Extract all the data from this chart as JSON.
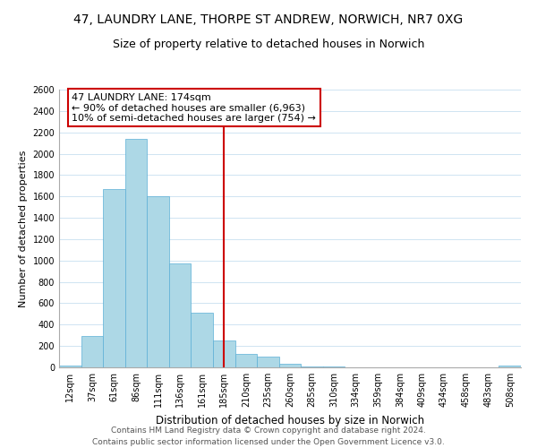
{
  "title": "47, LAUNDRY LANE, THORPE ST ANDREW, NORWICH, NR7 0XG",
  "subtitle": "Size of property relative to detached houses in Norwich",
  "xlabel": "Distribution of detached houses by size in Norwich",
  "ylabel": "Number of detached properties",
  "bar_labels": [
    "12sqm",
    "37sqm",
    "61sqm",
    "86sqm",
    "111sqm",
    "136sqm",
    "161sqm",
    "185sqm",
    "210sqm",
    "235sqm",
    "260sqm",
    "285sqm",
    "310sqm",
    "334sqm",
    "359sqm",
    "384sqm",
    "409sqm",
    "434sqm",
    "458sqm",
    "483sqm",
    "508sqm"
  ],
  "bar_heights": [
    20,
    295,
    1670,
    2140,
    1600,
    970,
    510,
    255,
    125,
    100,
    35,
    10,
    5,
    3,
    2,
    1,
    1,
    1,
    0,
    0,
    15
  ],
  "bar_color": "#add8e6",
  "bar_edge_color": "#5bafd6",
  "vline_x": 7,
  "vline_color": "#cc0000",
  "annotation_title": "47 LAUNDRY LANE: 174sqm",
  "annotation_line1": "← 90% of detached houses are smaller (6,963)",
  "annotation_line2": "10% of semi-detached houses are larger (754) →",
  "annotation_box_color": "#cc0000",
  "annotation_fill": "white",
  "ylim": [
    0,
    2600
  ],
  "yticks": [
    0,
    200,
    400,
    600,
    800,
    1000,
    1200,
    1400,
    1600,
    1800,
    2000,
    2200,
    2400,
    2600
  ],
  "footer1": "Contains HM Land Registry data © Crown copyright and database right 2024.",
  "footer2": "Contains public sector information licensed under the Open Government Licence v3.0.",
  "title_fontsize": 10,
  "subtitle_fontsize": 9,
  "xlabel_fontsize": 8.5,
  "ylabel_fontsize": 8,
  "tick_fontsize": 7,
  "footer_fontsize": 6.5,
  "annotation_fontsize": 8
}
